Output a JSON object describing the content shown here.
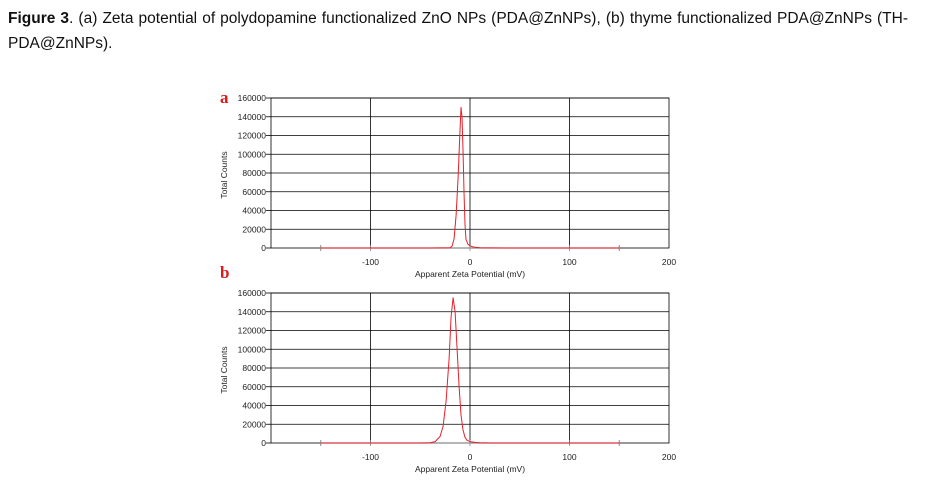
{
  "figure": {
    "label": "Figure 3",
    "caption": ". (a) Zeta potential of polydopamine functionalized ZnO NPs (PDA@ZnNPs), (b) thyme functionalized PDA@ZnNPs (TH-PDA@ZnNPs)."
  },
  "colors": {
    "series": "#e8202a",
    "grid": "#000000",
    "baseline": "#8a8a8a"
  },
  "chart_data": [
    {
      "type": "line",
      "panel": "a",
      "xlabel": "Apparent Zeta Potential (mV)",
      "ylabel": "Total Counts",
      "xlim": [
        -200,
        200
      ],
      "ylim": [
        0,
        160000
      ],
      "xticks": [
        -100,
        0,
        100,
        200
      ],
      "yticks": [
        0,
        20000,
        40000,
        60000,
        80000,
        100000,
        120000,
        140000,
        160000
      ],
      "grid": true,
      "baseline_range": [
        -150,
        150
      ],
      "series": [
        {
          "x": [
            -150,
            -40,
            -20,
            -18,
            -16,
            -14,
            -12,
            -10,
            -9,
            -8,
            -7,
            -6,
            -5,
            -4,
            -2,
            0,
            2,
            5,
            10,
            20,
            40,
            150
          ],
          "y": [
            0,
            0,
            300,
            2000,
            10000,
            35000,
            75000,
            125000,
            150000,
            140000,
            105000,
            60000,
            25000,
            9000,
            4000,
            2500,
            1500,
            800,
            300,
            100,
            0,
            0
          ]
        }
      ]
    },
    {
      "type": "line",
      "panel": "b",
      "xlabel": "Apparent Zeta Potential (mV)",
      "ylabel": "Total Counts",
      "xlim": [
        -200,
        200
      ],
      "ylim": [
        0,
        160000
      ],
      "xticks": [
        -100,
        0,
        100,
        200
      ],
      "yticks": [
        0,
        20000,
        40000,
        60000,
        80000,
        100000,
        120000,
        140000,
        160000
      ],
      "grid": true,
      "baseline_range": [
        -150,
        150
      ],
      "series": [
        {
          "x": [
            -150,
            -50,
            -40,
            -35,
            -30,
            -27,
            -24,
            -21,
            -19,
            -17,
            -15,
            -13,
            -11,
            -9,
            -7,
            -5,
            -3,
            0,
            5,
            10,
            20,
            150
          ],
          "y": [
            0,
            0,
            300,
            1500,
            7000,
            18000,
            45000,
            90000,
            135000,
            155000,
            140000,
            100000,
            60000,
            30000,
            14000,
            6000,
            3000,
            1500,
            600,
            200,
            0,
            0
          ]
        }
      ]
    }
  ]
}
